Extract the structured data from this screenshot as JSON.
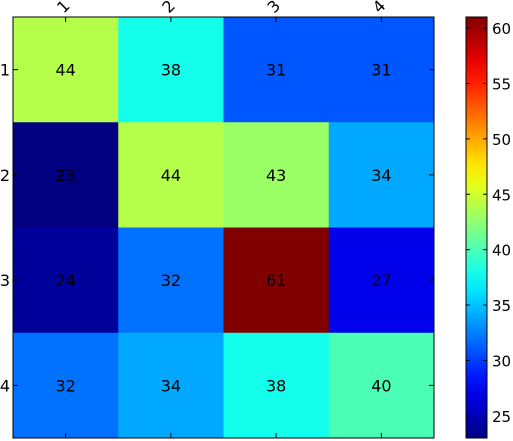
{
  "chart_data": {
    "type": "heatmap",
    "title": "",
    "xlabel": "",
    "ylabel": "",
    "x_categories": [
      "1",
      "2",
      "3",
      "4"
    ],
    "y_categories": [
      "1",
      "2",
      "3",
      "4"
    ],
    "values": [
      [
        44,
        38,
        31,
        31
      ],
      [
        23,
        44,
        43,
        34
      ],
      [
        24,
        32,
        61,
        27
      ],
      [
        32,
        34,
        38,
        40
      ]
    ],
    "colormap": "jet",
    "color_range": [
      23,
      61
    ],
    "colorbar_ticks": [
      25,
      30,
      35,
      40,
      45,
      50,
      55,
      60
    ],
    "colorbar_position": "right",
    "x_tick_rotation_deg": 45,
    "x_ticks_position": "top",
    "grid": false,
    "legend": "none"
  }
}
